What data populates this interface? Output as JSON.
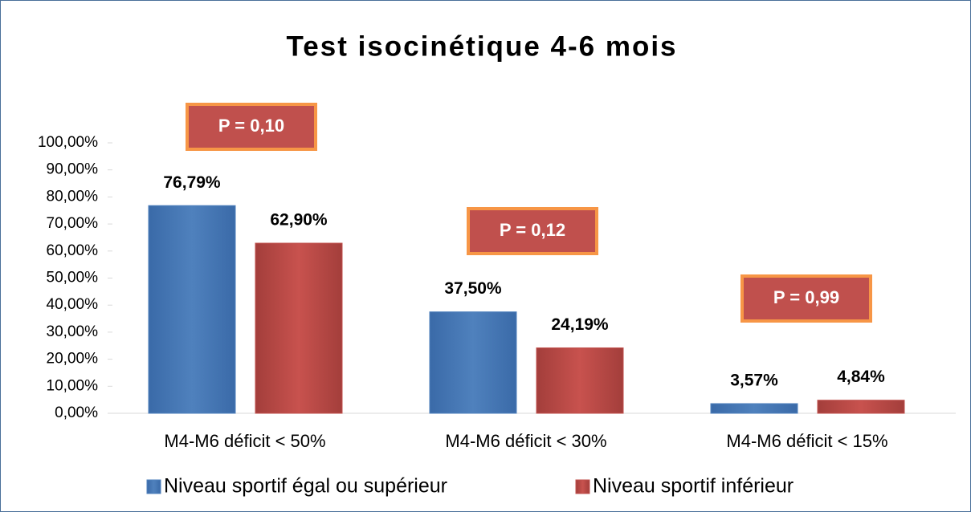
{
  "chart_data": {
    "type": "bar",
    "title": "Test isocinétique 4-6 mois",
    "categories": [
      "M4-M6 déficit < 50%",
      "M4-M6 déficit < 30%",
      "M4-M6 déficit < 15%"
    ],
    "series": [
      {
        "name": "Niveau sportif égal ou supérieur",
        "color": "#4f81bd",
        "values": [
          76.79,
          37.5,
          3.57
        ],
        "value_labels": [
          "76,79%",
          "37,50%",
          "3,57%"
        ]
      },
      {
        "name": "Niveau sportif inférieur",
        "color": "#c0504d",
        "values": [
          62.9,
          24.19,
          4.84
        ],
        "value_labels": [
          "62,90%",
          "24,19%",
          "4,84%"
        ]
      }
    ],
    "annotations": [
      "P = 0,10",
      "P = 0,12",
      "P = 0,99"
    ],
    "ylim": [
      0,
      100
    ],
    "yticks": [
      {
        "value": 0,
        "label": "0,00%"
      },
      {
        "value": 10,
        "label": "10,00%"
      },
      {
        "value": 20,
        "label": "20,00%"
      },
      {
        "value": 30,
        "label": "30,00%"
      },
      {
        "value": 40,
        "label": "40,00%"
      },
      {
        "value": 50,
        "label": "50,00%"
      },
      {
        "value": 60,
        "label": "60,00%"
      },
      {
        "value": 70,
        "label": "70,00%"
      },
      {
        "value": 80,
        "label": "80,00%"
      },
      {
        "value": 90,
        "label": "90,00%"
      },
      {
        "value": 100,
        "label": "100,00%"
      }
    ],
    "legend": "bottom"
  }
}
